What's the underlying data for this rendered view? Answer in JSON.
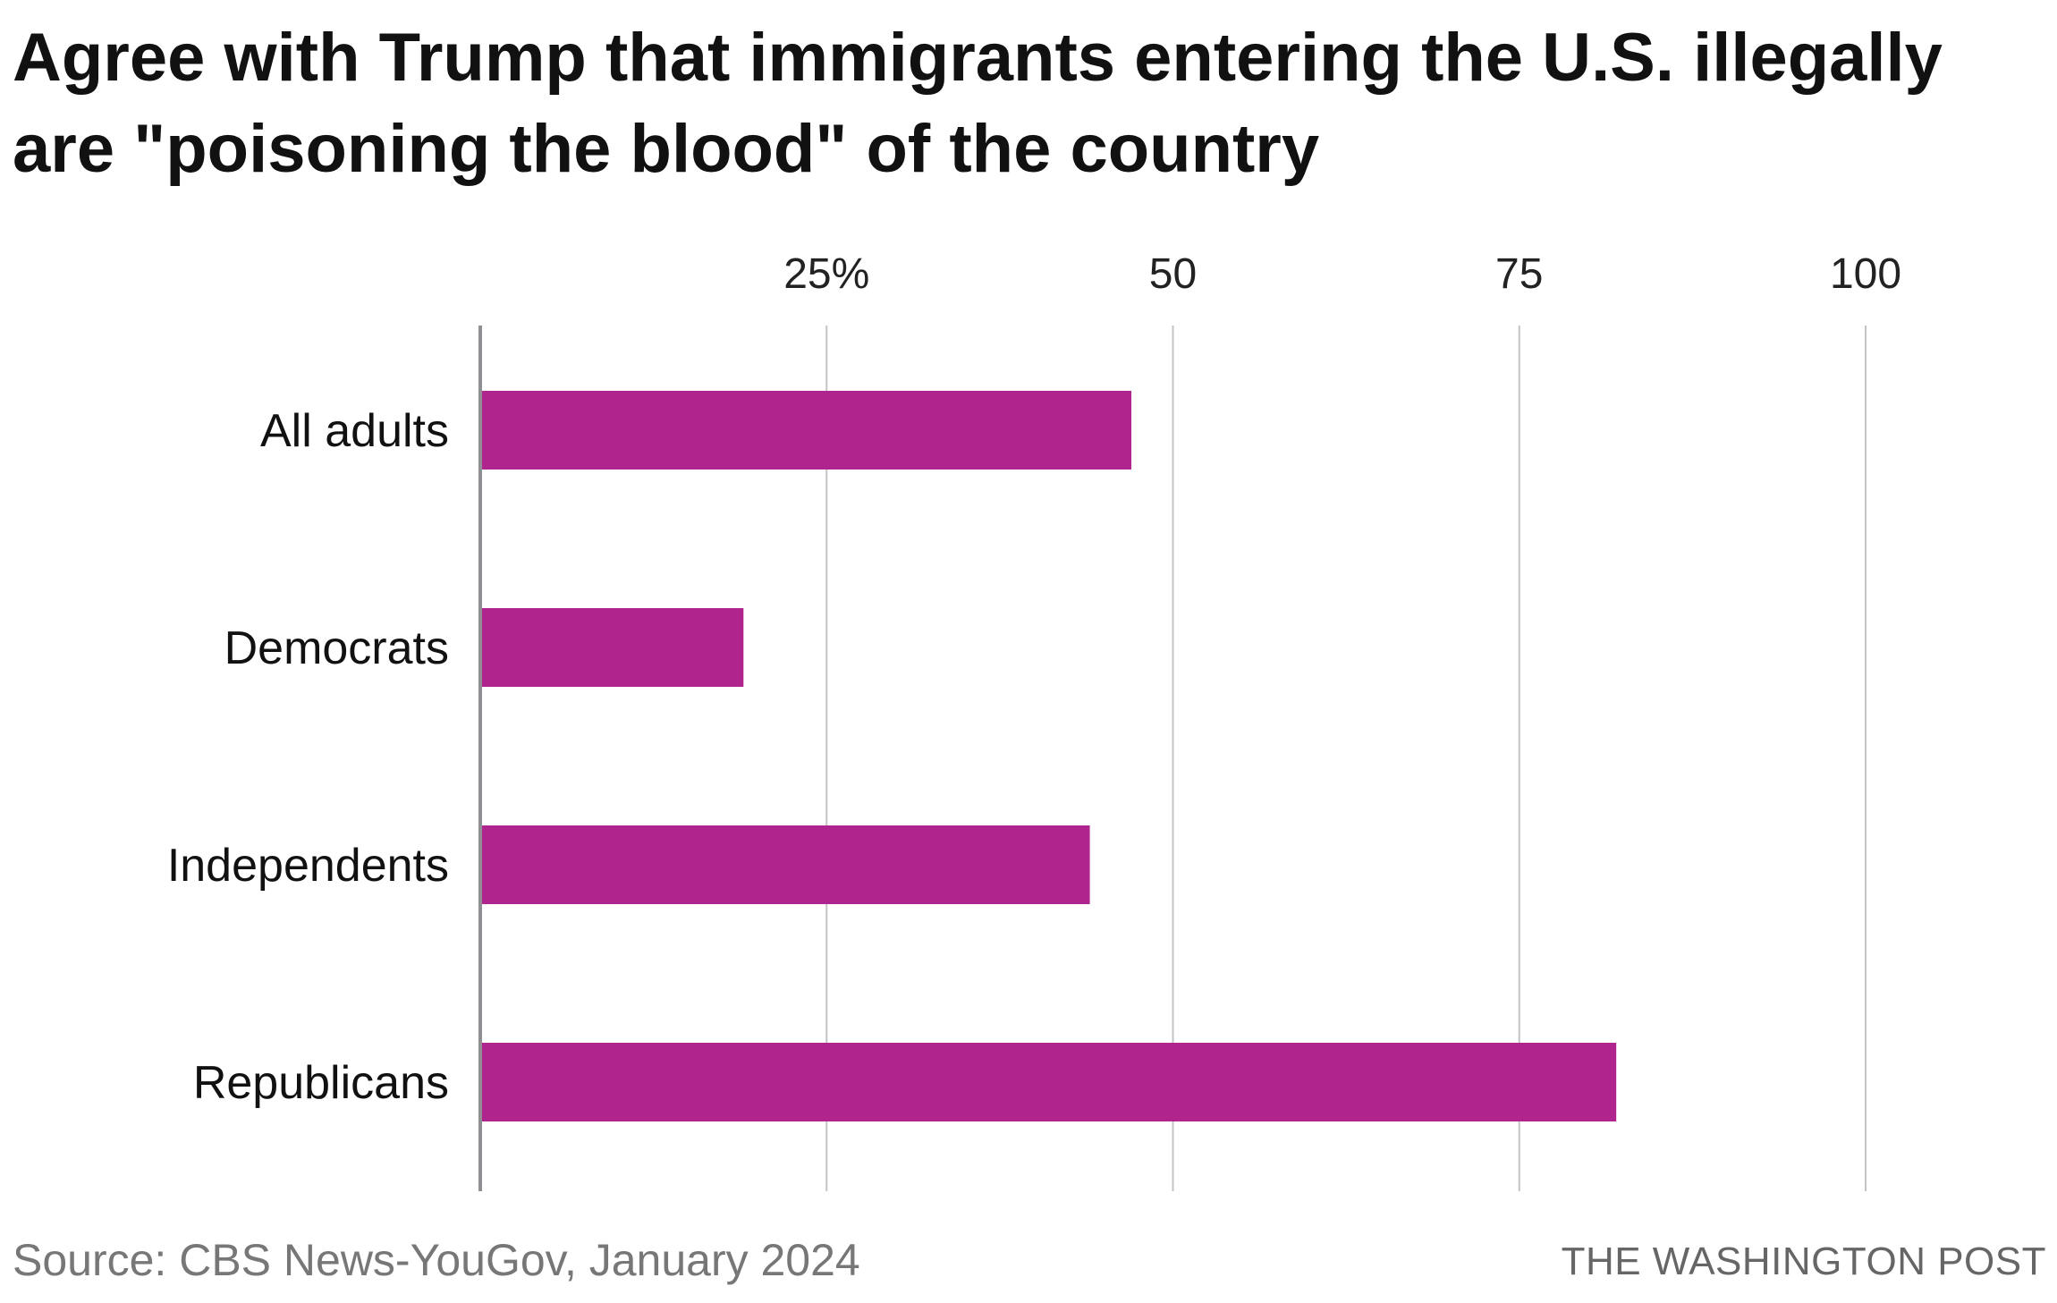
{
  "title": "Agree with Trump that immigrants entering the U.S. illegally are \"poisoning the blood\" of the country",
  "source": "Source: CBS News-YouGov, January 2024",
  "credit": "THE WASHINGTON POST",
  "colors": {
    "bar": "#b0248e",
    "grid": "#c4c4c4",
    "axis": "#8f8f94"
  },
  "chart_data": {
    "type": "bar",
    "orientation": "horizontal",
    "title": "Agree with Trump that immigrants entering the U.S. illegally are \"poisoning the blood\" of the country",
    "categories": [
      "All adults",
      "Democrats",
      "Independents",
      "Republicans"
    ],
    "values": [
      47,
      19,
      44,
      82
    ],
    "xlim": [
      0,
      100
    ],
    "ticks": [
      25,
      50,
      75,
      100
    ],
    "tick_labels": [
      "25%",
      "50",
      "75",
      "100"
    ],
    "tick_position": "top",
    "grid": true,
    "unit": "%"
  }
}
